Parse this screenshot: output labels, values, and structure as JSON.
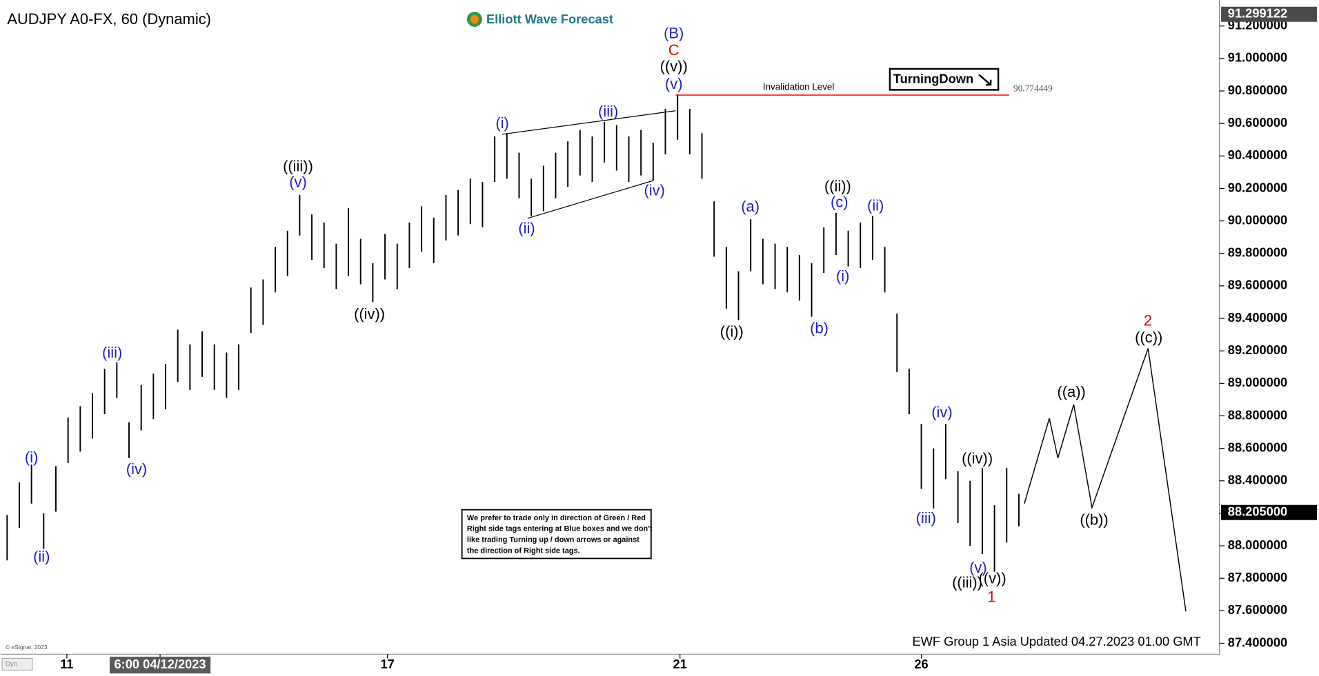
{
  "chart_data": {
    "type": "ohlc",
    "title": "AUDJPY A0-FX, 60 (Dynamic)",
    "logo": "Elliott Wave Forecast",
    "color": "#000000",
    "high": [
      88.19,
      88.39,
      88.5,
      88.2,
      88.49,
      88.79,
      88.86,
      88.94,
      89.09,
      89.13,
      88.76,
      88.99,
      89.06,
      89.12,
      89.33,
      89.24,
      89.32,
      89.24,
      89.19,
      89.24,
      89.59,
      89.64,
      89.84,
      89.94,
      90.16,
      90.04,
      89.99,
      89.86,
      90.08,
      89.89,
      89.74,
      89.92,
      89.86,
      89.99,
      90.09,
      90.02,
      90.16,
      90.19,
      90.26,
      90.24,
      90.52,
      90.54,
      90.42,
      90.26,
      90.34,
      90.42,
      90.49,
      90.56,
      90.52,
      90.61,
      90.59,
      90.52,
      90.56,
      90.48,
      90.69,
      90.78,
      90.69,
      90.54,
      90.12,
      89.84,
      89.69,
      90.01,
      89.89,
      89.86,
      89.84,
      89.79,
      89.74,
      89.96,
      90.05,
      89.94,
      89.99,
      90.03,
      89.84,
      89.43,
      89.09,
      88.75,
      88.6,
      88.75,
      88.46,
      88.4,
      88.48,
      88.25,
      88.48,
      88.32
    ],
    "low": [
      87.91,
      88.11,
      88.26,
      87.98,
      88.21,
      88.51,
      88.58,
      88.66,
      88.81,
      88.91,
      88.54,
      88.71,
      88.78,
      88.84,
      89.01,
      88.96,
      89.04,
      88.96,
      88.91,
      88.96,
      89.31,
      89.36,
      89.56,
      89.66,
      89.91,
      89.76,
      89.71,
      89.58,
      89.66,
      89.61,
      89.5,
      89.64,
      89.58,
      89.71,
      89.81,
      89.74,
      89.88,
      89.91,
      89.98,
      89.96,
      90.24,
      90.26,
      90.14,
      90.03,
      90.06,
      90.14,
      90.21,
      90.28,
      90.24,
      90.36,
      90.31,
      90.24,
      90.28,
      90.25,
      90.41,
      90.5,
      90.41,
      90.26,
      89.78,
      89.46,
      89.39,
      89.69,
      89.61,
      89.58,
      89.56,
      89.51,
      89.41,
      89.68,
      89.79,
      89.72,
      89.71,
      89.76,
      89.56,
      89.07,
      88.81,
      88.35,
      88.23,
      88.41,
      88.14,
      88.0,
      87.95,
      87.84,
      88.02,
      88.12
    ],
    "xlim": [
      -0.55,
      99.45
    ],
    "ylim": [
      87.338,
      91.36
    ],
    "yticks": [
      {
        "value": 87.4,
        "label": "87.400000"
      },
      {
        "value": 87.6,
        "label": "87.600000"
      },
      {
        "value": 87.8,
        "label": "87.800000"
      },
      {
        "value": 88.0,
        "label": "88.000000"
      },
      {
        "value": 88.2,
        "label": "88.200000"
      },
      {
        "value": 88.4,
        "label": "88.400000"
      },
      {
        "value": 88.6,
        "label": "88.600000"
      },
      {
        "value": 88.8,
        "label": "88.800000"
      },
      {
        "value": 89.0,
        "label": "89.000000"
      },
      {
        "value": 89.2,
        "label": "89.200000"
      },
      {
        "value": 89.4,
        "label": "89.400000"
      },
      {
        "value": 89.6,
        "label": "89.600000"
      },
      {
        "value": 89.8,
        "label": "89.800000"
      },
      {
        "value": 90.0,
        "label": "90.000000"
      },
      {
        "value": 90.2,
        "label": "90.200000"
      },
      {
        "value": 90.4,
        "label": "90.400000"
      },
      {
        "value": 90.6,
        "label": "90.600000"
      },
      {
        "value": 90.8,
        "label": "90.800000"
      },
      {
        "value": 91.0,
        "label": "91.000000"
      },
      {
        "value": 91.2,
        "label": "91.200000"
      }
    ],
    "xticks": [
      {
        "value": 4.9,
        "label": "11"
      },
      {
        "value": 12.55,
        "label": "6:00 04/12/2023",
        "highlight": true
      },
      {
        "value": 31.2,
        "label": "17"
      },
      {
        "value": 55.2,
        "label": "21"
      },
      {
        "value": 75,
        "label": "26"
      }
    ],
    "projection": {
      "color": "#000000",
      "x": [
        83.45,
        85.5,
        86.2,
        87.5,
        89.0,
        93.6,
        96.7
      ],
      "values": [
        88.26,
        88.785,
        88.54,
        88.87,
        88.235,
        89.215,
        87.596
      ]
    },
    "wedge_lines": [
      {
        "x": [
          40.6,
          54.83
        ],
        "values": [
          90.533,
          90.678
        ]
      },
      {
        "x": [
          42.7,
          53.03
        ],
        "values": [
          90.016,
          90.249
        ]
      }
    ],
    "invalidation": {
      "name": "Invalidation Level",
      "value": 90.774449,
      "label": "90.774449",
      "color": "#ff0000",
      "x": [
        54.83,
        82.2
      ]
    },
    "price_tags": [
      {
        "value": 91.299122,
        "label": "91.299122"
      },
      {
        "value": 88.205,
        "label": "88.205000"
      }
    ],
    "wave_labels": [
      {
        "text": "(i)",
        "color": "#1c1cd6"
      },
      {
        "text": "(ii)",
        "color": "#1c1cd6"
      },
      {
        "text": "(iii)",
        "color": "#1c1cd6"
      },
      {
        "text": "(iv)",
        "color": "#1c1cd6"
      },
      {
        "text": "((iii))",
        "color": "#000000"
      },
      {
        "text": "(v)",
        "color": "#1c1cd6"
      },
      {
        "text": "((iv))",
        "color": "#000000"
      },
      {
        "text": "(i)",
        "color": "#1c1cd6"
      },
      {
        "text": "(ii)",
        "color": "#1c1cd6"
      },
      {
        "text": "(iii)",
        "color": "#1c1cd6"
      },
      {
        "text": "(iv)",
        "color": "#1c1cd6"
      },
      {
        "text": "(B)",
        "color": "#1c1cd6"
      },
      {
        "text": "C",
        "color": "#e00000"
      },
      {
        "text": "((v))",
        "color": "#000000"
      },
      {
        "text": "(v)",
        "color": "#1c1cd6"
      },
      {
        "text": "(a)",
        "color": "#1c1cd6"
      },
      {
        "text": "((i))",
        "color": "#000000"
      },
      {
        "text": "(b)",
        "color": "#1c1cd6"
      },
      {
        "text": "((ii))",
        "color": "#000000"
      },
      {
        "text": "(c)",
        "color": "#1c1cd6"
      },
      {
        "text": "(i)",
        "color": "#1c1cd6"
      },
      {
        "text": "(ii)",
        "color": "#1c1cd6"
      },
      {
        "text": "(iv)",
        "color": "#1c1cd6"
      },
      {
        "text": "(iii)",
        "color": "#1c1cd6"
      },
      {
        "text": "((iv))",
        "color": "#000000"
      },
      {
        "text": "(v)",
        "color": "#1c1cd6"
      },
      {
        "text": "((iii))",
        "color": "#000000"
      },
      {
        "text": "((v))",
        "color": "#000000"
      },
      {
        "text": "1",
        "color": "#e00000"
      },
      {
        "text": "((a))",
        "color": "#000000"
      },
      {
        "text": "((b))",
        "color": "#000000"
      },
      {
        "text": "2",
        "color": "#e00000"
      },
      {
        "text": "((c))",
        "color": "#000000"
      }
    ],
    "badge": "TurningDown",
    "note": [
      "We prefer to trade only in direction of Green / Red",
      "Right side tags entering at Blue boxes and we don't",
      "like trading Turning up / down arrows or against",
      "the direction of Right side tags."
    ],
    "footer": "EWF Group 1 Asia Updated 04.27.2023 01.00 GMT",
    "copyright": "© eSignal, 2023",
    "corner": "Dyn"
  }
}
